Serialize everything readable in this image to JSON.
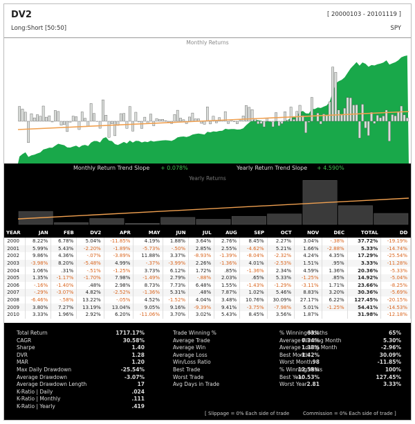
{
  "header": {
    "title": "DV2",
    "subtitle": "Long:Short [50:50]",
    "date_range": "[ 20000103 - 20101119 ]",
    "ticker": "SPY"
  },
  "monthly_chart": {
    "title": "Monthly Returns",
    "colors": {
      "equity": "#19a84a",
      "benchmark": "#c8c8c8",
      "bar": "#d8dbd8",
      "trend": "#f0a050"
    }
  },
  "slope_bar": {
    "monthly_label": "Monthly Return Trend Slope",
    "monthly_value": "+ 0.078%",
    "yearly_label": "Yearly Return Trend Slope",
    "yearly_value": "+ 4.590%"
  },
  "yearly_chart": {
    "title": "Yearly Returns"
  },
  "returns_table": {
    "headers": [
      "YEAR",
      "JAN",
      "FEB",
      "DV2",
      "APR",
      "MAY",
      "JUN",
      "JUL",
      "AUG",
      "SEP",
      "OCT",
      "NOV",
      "DEC",
      "TOTAL",
      "DD"
    ],
    "rows": [
      [
        "2000",
        "8.22%",
        "6.78%",
        "5.04%",
        "-11.85%",
        "4.19%",
        "1.88%",
        "3.64%",
        "2.76%",
        "8.45%",
        "2.27%",
        "3.04%",
        "-.38%",
        "37.72%",
        "-19.19%"
      ],
      [
        "2001",
        "5.99%",
        "5.43%",
        "-2.20%",
        "-1.89%",
        "-5.73%",
        "-.50%",
        "2.85%",
        "2.55%",
        "-4.62%",
        "5.21%",
        "1.66%",
        "-2.88%",
        "5.33%",
        "-14.74%"
      ],
      [
        "2002",
        "9.86%",
        "4.36%",
        "-.07%",
        "-3.89%",
        "11.88%",
        "3.37%",
        "-8.93%",
        "-1.39%",
        "-8.04%",
        "-2.32%",
        "4.24%",
        "4.35%",
        "17.29%",
        "-25.54%"
      ],
      [
        "2003",
        "-3.98%",
        "8.20%",
        "-5.48%",
        "4.99%",
        "-.37%",
        "-3.99%",
        "2.26%",
        "-1.36%",
        "4.01%",
        "-2.53%",
        "1.51%",
        ".95%",
        "3.33%",
        "-11.28%"
      ],
      [
        "2004",
        "1.06%",
        ".31%",
        "-.51%",
        "-1.25%",
        "3.73%",
        "6.12%",
        "1.72%",
        ".85%",
        "-1.36%",
        "2.34%",
        "4.59%",
        "1.36%",
        "20.36%",
        "-5.33%"
      ],
      [
        "2005",
        "1.35%",
        "-1.17%",
        "-1.70%",
        "7.98%",
        "-1.49%",
        "2.79%",
        "-.88%",
        "2.03%",
        ".65%",
        "5.33%",
        "-1.25%",
        ".85%",
        "14.92%",
        "-5.04%"
      ],
      [
        "2006",
        "-.16%",
        "-1.40%",
        ".48%",
        "2.98%",
        "8.73%",
        "7.73%",
        "6.48%",
        "1.55%",
        "-1.43%",
        "-1.29%",
        "-3.11%",
        "1.71%",
        "23.66%",
        "-8.25%"
      ],
      [
        "2007",
        "-.29%",
        "-3.07%",
        "4.82%",
        "-2.52%",
        "-1.36%",
        "5.31%",
        ".48%",
        "7.87%",
        "1.02%",
        "5.46%",
        "8.83%",
        "3.20%",
        "30.36%",
        "-5.69%"
      ],
      [
        "2008",
        "-6.46%",
        "-.58%",
        "13.22%",
        "-.05%",
        "4.52%",
        "-1.52%",
        "4.04%",
        "3.48%",
        "10.76%",
        "30.09%",
        "27.17%",
        "6.22%",
        "127.45%",
        "-20.15%"
      ],
      [
        "2009",
        "3.80%",
        "7.27%",
        "13.19%",
        "13.04%",
        "9.05%",
        "9.16%",
        "-9.39%",
        "9.41%",
        "-3.75%",
        "-7.98%",
        "5.01%",
        "-1.25%",
        "54.41%",
        "-14.53%"
      ],
      [
        "2010",
        "3.33%",
        "1.96%",
        "2.92%",
        "6.20%",
        "-11.06%",
        "3.70%",
        "3.02%",
        "5.43%",
        "8.45%",
        "3.56%",
        "1.87%",
        "",
        "31.98%",
        "-12.18%"
      ]
    ]
  },
  "stats": {
    "col1": [
      [
        "Total Return",
        "1717.17%"
      ],
      [
        "CAGR",
        "30.58%"
      ],
      [
        "Sharpe",
        "1.40"
      ],
      [
        "DVR",
        "1.28"
      ],
      [
        "MAR",
        "1.20"
      ],
      [
        "Max Daily Drawdown",
        "-25.54%"
      ],
      [
        "Average Drawdown",
        "-3.07%"
      ],
      [
        "Average Drawdown Length",
        "17"
      ],
      [
        "K-Ratio | Daily",
        ".024"
      ],
      [
        "K-Ratio | Monthly",
        ".111"
      ],
      [
        "K-Ratio | Yearly",
        ".419"
      ]
    ],
    "col2": [
      [
        "Trade Winning %",
        "63%"
      ],
      [
        "Average Trade",
        "0.34%"
      ],
      [
        "Average Win",
        "1.38%"
      ],
      [
        "Average Loss",
        "-1.42%"
      ],
      [
        "Win/Loss Ratio",
        ".98"
      ],
      [
        "Best Trade",
        "12.58%"
      ],
      [
        "Worst Trade",
        "-10.53%"
      ],
      [
        "Avg Days in Trade",
        "2.81"
      ]
    ],
    "col3": [
      [
        "% Winning Months",
        "65%"
      ],
      [
        "Average Winning Month",
        "5.30%"
      ],
      [
        "Average Losing Month",
        "-2.96%"
      ],
      [
        "Best Month",
        "30.09%"
      ],
      [
        "Worst Month",
        "-11.85%"
      ],
      [
        "% Winning Years",
        "100%"
      ],
      [
        "Best Year",
        "127.45%"
      ],
      [
        "Worst Year",
        "3.33%"
      ]
    ],
    "slippage": "[ Slippage = 0% Each side of trade",
    "commission": "Commission = 0% Each side of trade ]"
  }
}
